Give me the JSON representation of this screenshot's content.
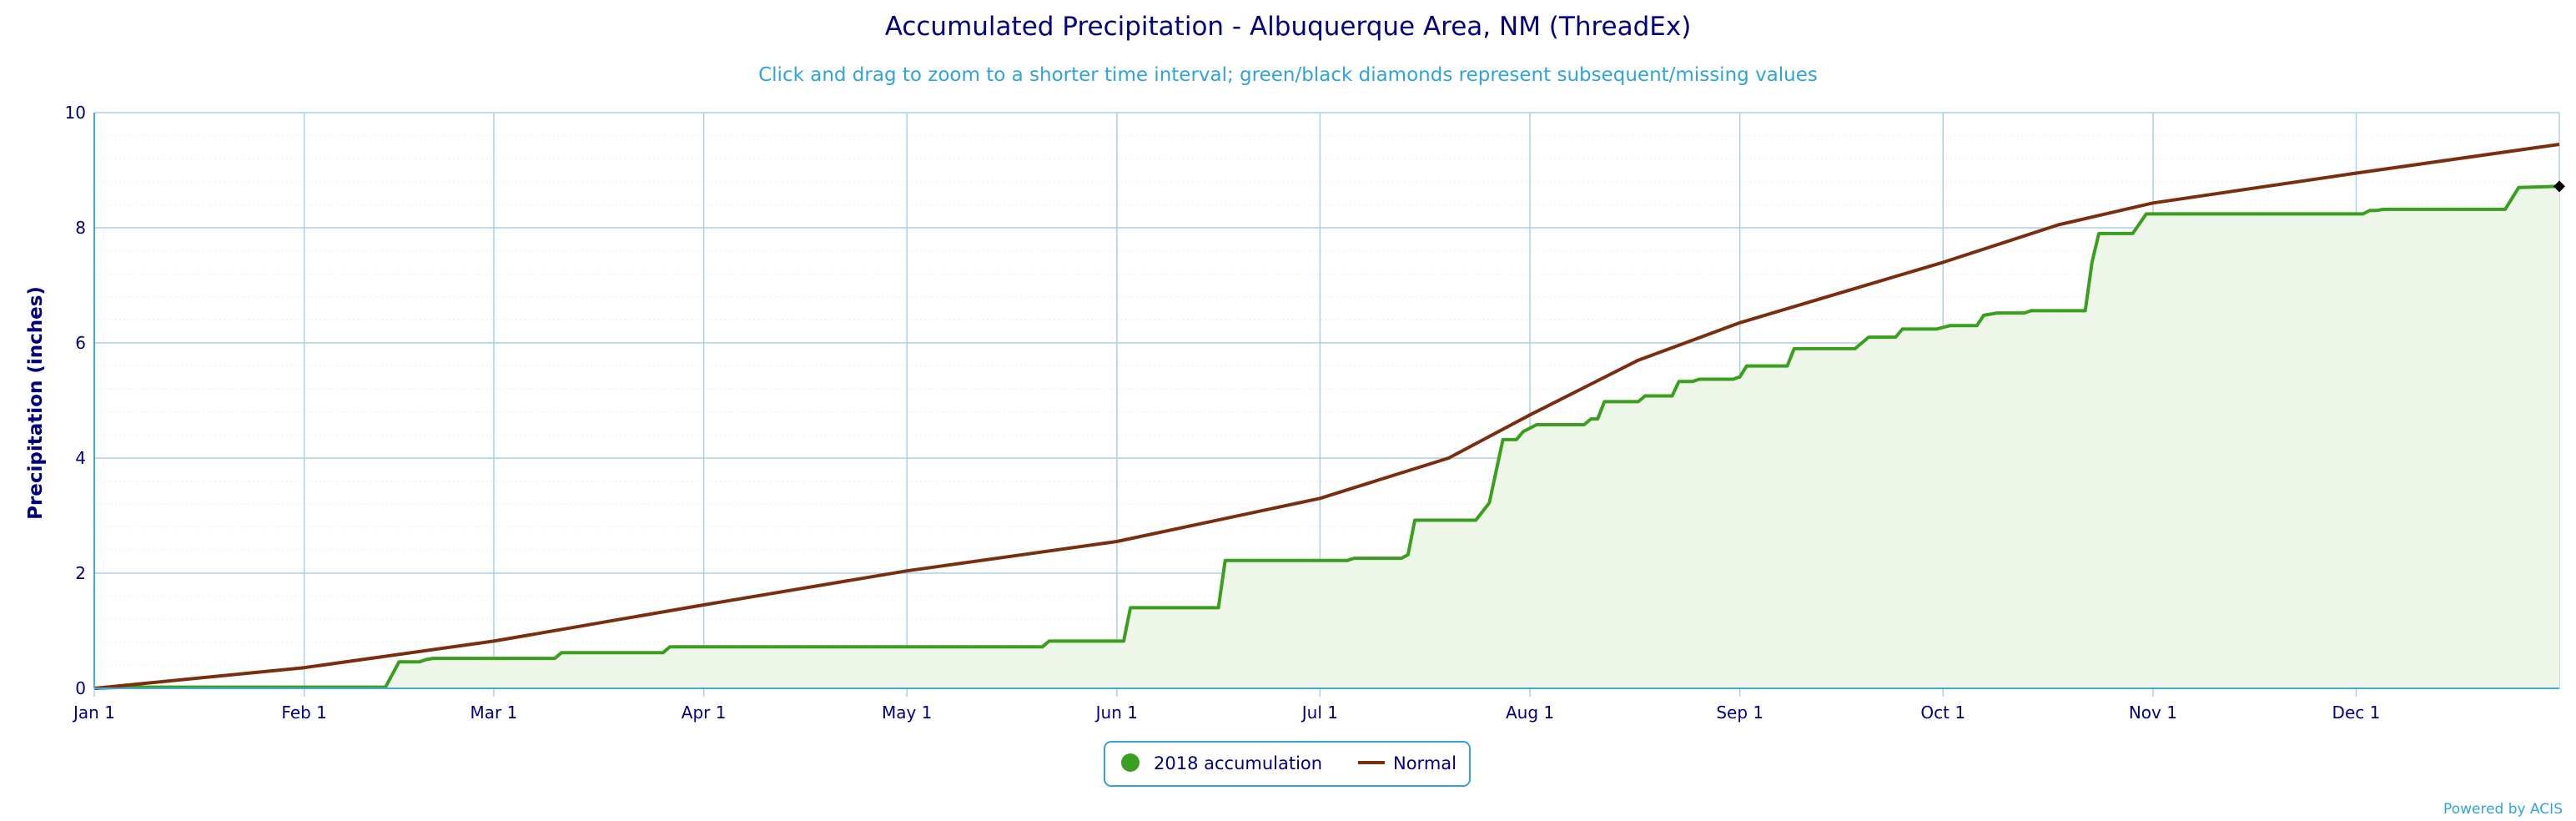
{
  "chart_data": {
    "type": "area",
    "title": "Accumulated Precipitation - Albuquerque Area, NM (ThreadEx)",
    "subtitle": "Click and drag to zoom to a shorter time interval; green/black diamonds represent subsequent/missing values",
    "ylabel": "Precipitation (inches)",
    "xlabel": "",
    "ylim": [
      0,
      10
    ],
    "y_ticks": [
      "0",
      "2",
      "4",
      "6",
      "8",
      "10"
    ],
    "x_ticks": [
      "Jan 1",
      "Feb 1",
      "Mar 1",
      "Apr 1",
      "May 1",
      "Jun 1",
      "Jul 1",
      "Aug 1",
      "Sep 1",
      "Oct 1",
      "Nov 1",
      "Dec 1"
    ],
    "x_tick_days": [
      0,
      31,
      59,
      90,
      120,
      151,
      181,
      212,
      243,
      273,
      304,
      334
    ],
    "x_max_day": 364,
    "grid": true,
    "legend_position": "bottom-center",
    "series": [
      {
        "name": "2018 accumulation",
        "color": "#3a9e1e",
        "fill": "#edf6e8",
        "points": [
          [
            0,
            0
          ],
          [
            5,
            0.02
          ],
          [
            43,
            0.02
          ],
          [
            45,
            0.46
          ],
          [
            48,
            0.46
          ],
          [
            49,
            0.5
          ],
          [
            50,
            0.52
          ],
          [
            68,
            0.52
          ],
          [
            69,
            0.62
          ],
          [
            84,
            0.62
          ],
          [
            85,
            0.72
          ],
          [
            140,
            0.72
          ],
          [
            141,
            0.82
          ],
          [
            152,
            0.82
          ],
          [
            153,
            1.4
          ],
          [
            166,
            1.4
          ],
          [
            167,
            2.22
          ],
          [
            185,
            2.22
          ],
          [
            186,
            2.26
          ],
          [
            193,
            2.26
          ],
          [
            194,
            2.32
          ],
          [
            195,
            2.92
          ],
          [
            204,
            2.92
          ],
          [
            206,
            3.22
          ],
          [
            208,
            4.32
          ],
          [
            210,
            4.32
          ],
          [
            211,
            4.46
          ],
          [
            213,
            4.58
          ],
          [
            220,
            4.58
          ],
          [
            221,
            4.68
          ],
          [
            222,
            4.68
          ],
          [
            223,
            4.98
          ],
          [
            228,
            4.98
          ],
          [
            229,
            5.08
          ],
          [
            233,
            5.08
          ],
          [
            234,
            5.33
          ],
          [
            236,
            5.33
          ],
          [
            237,
            5.37
          ],
          [
            242,
            5.37
          ],
          [
            243,
            5.41
          ],
          [
            244,
            5.6
          ],
          [
            250,
            5.6
          ],
          [
            251,
            5.9
          ],
          [
            260,
            5.9
          ],
          [
            262,
            6.1
          ],
          [
            266,
            6.1
          ],
          [
            267,
            6.24
          ],
          [
            272,
            6.24
          ],
          [
            274,
            6.3
          ],
          [
            278,
            6.3
          ],
          [
            279,
            6.48
          ],
          [
            281,
            6.52
          ],
          [
            285,
            6.52
          ],
          [
            286,
            6.56
          ],
          [
            294,
            6.56
          ],
          [
            295,
            7.4
          ],
          [
            296,
            7.9
          ],
          [
            301,
            7.9
          ],
          [
            303,
            8.24
          ],
          [
            335,
            8.24
          ],
          [
            336,
            8.3
          ],
          [
            337,
            8.3
          ],
          [
            338,
            8.32
          ],
          [
            356,
            8.32
          ],
          [
            358,
            8.7
          ],
          [
            364,
            8.72
          ]
        ]
      },
      {
        "name": "Normal",
        "color": "#7a2e0e",
        "points": [
          [
            0,
            0
          ],
          [
            31,
            0.36
          ],
          [
            59,
            0.82
          ],
          [
            90,
            1.45
          ],
          [
            120,
            2.04
          ],
          [
            151,
            2.55
          ],
          [
            181,
            3.3
          ],
          [
            200,
            4.0
          ],
          [
            212,
            4.75
          ],
          [
            228,
            5.7
          ],
          [
            243,
            6.35
          ],
          [
            273,
            7.4
          ],
          [
            290,
            8.05
          ],
          [
            304,
            8.43
          ],
          [
            334,
            8.95
          ],
          [
            364,
            9.45
          ]
        ]
      }
    ],
    "markers": [
      {
        "type": "diamond",
        "color": "#000000",
        "x": 364,
        "y": 8.72
      }
    ]
  },
  "credits": "Powered by ACIS"
}
